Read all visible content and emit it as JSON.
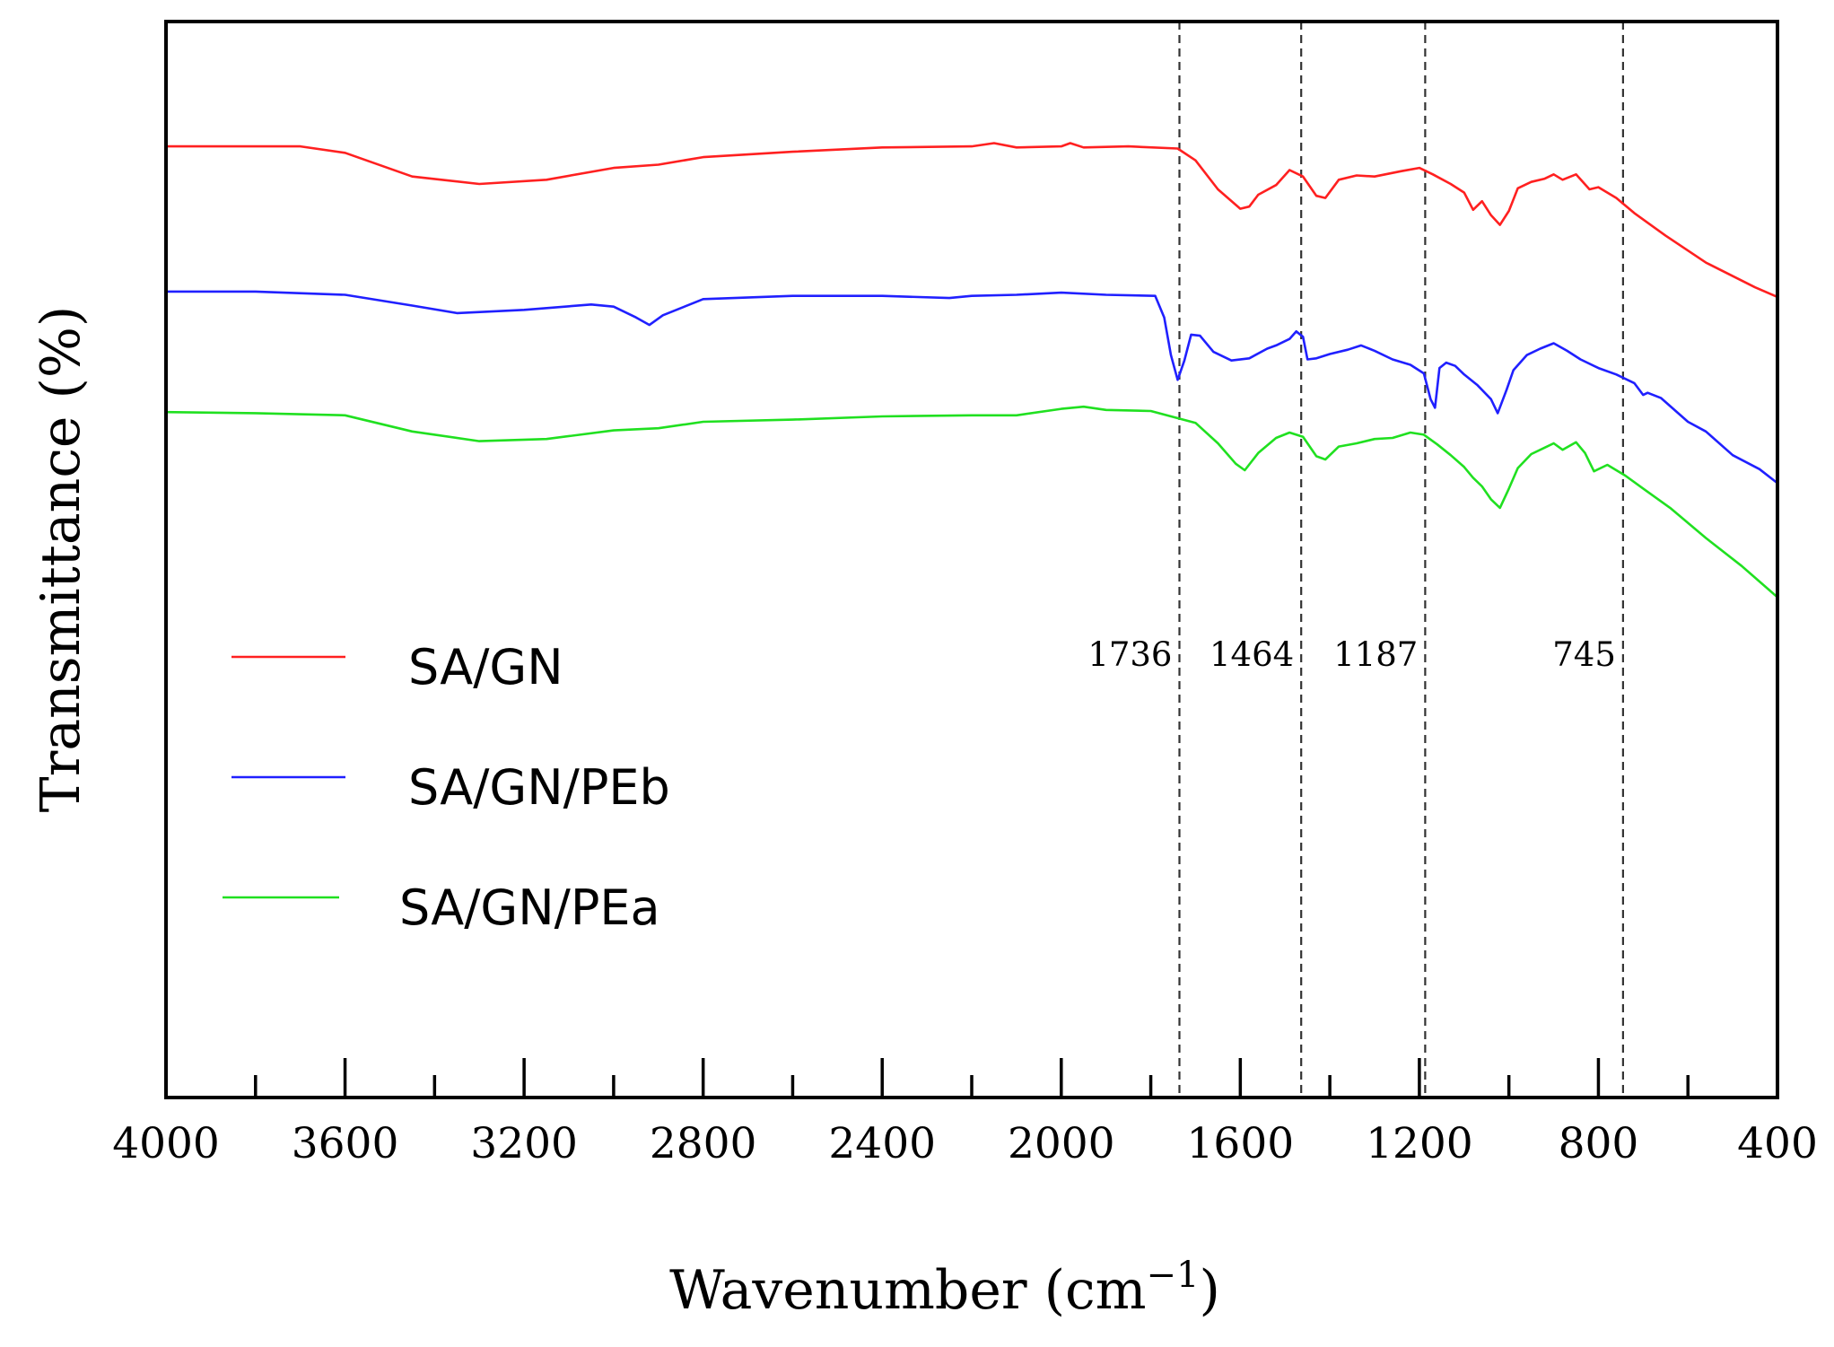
{
  "chart_data": {
    "type": "line",
    "title": "",
    "xlabel": "Wavenumber (cm",
    "xlabel_sup": "−1",
    "xlabel_close": ")",
    "ylabel": "Transmittance (%)",
    "xlim": [
      4000,
      400
    ],
    "ylim": [
      0,
      100
    ],
    "y_ticks_shown": false,
    "legend_position": "center-left",
    "x_ticks": [
      "4000",
      "3600",
      "3200",
      "2800",
      "2400",
      "2000",
      "1600",
      "1200",
      "800",
      "400"
    ],
    "annotations": [
      {
        "label": "1736",
        "x": 1736
      },
      {
        "label": "1464",
        "x": 1464
      },
      {
        "label": "1187",
        "x": 1187
      },
      {
        "label": "745",
        "x": 745
      }
    ],
    "series": [
      {
        "name": "SA/GN",
        "color": "#ff2020",
        "points": [
          [
            4000,
            88.4
          ],
          [
            3700,
            88.4
          ],
          [
            3600,
            87.8
          ],
          [
            3450,
            85.6
          ],
          [
            3300,
            84.9
          ],
          [
            3150,
            85.3
          ],
          [
            3000,
            86.4
          ],
          [
            2900,
            86.7
          ],
          [
            2800,
            87.4
          ],
          [
            2600,
            87.9
          ],
          [
            2400,
            88.3
          ],
          [
            2200,
            88.4
          ],
          [
            2150,
            88.7
          ],
          [
            2100,
            88.3
          ],
          [
            2000,
            88.4
          ],
          [
            1980,
            88.7
          ],
          [
            1950,
            88.3
          ],
          [
            1850,
            88.4
          ],
          [
            1740,
            88.2
          ],
          [
            1700,
            87.1
          ],
          [
            1650,
            84.4
          ],
          [
            1600,
            82.6
          ],
          [
            1580,
            82.8
          ],
          [
            1560,
            83.9
          ],
          [
            1520,
            84.8
          ],
          [
            1490,
            86.2
          ],
          [
            1460,
            85.6
          ],
          [
            1430,
            83.8
          ],
          [
            1410,
            83.6
          ],
          [
            1380,
            85.3
          ],
          [
            1340,
            85.7
          ],
          [
            1300,
            85.6
          ],
          [
            1240,
            86.1
          ],
          [
            1200,
            86.4
          ],
          [
            1170,
            85.8
          ],
          [
            1130,
            84.9
          ],
          [
            1100,
            84.1
          ],
          [
            1080,
            82.5
          ],
          [
            1060,
            83.3
          ],
          [
            1040,
            82.0
          ],
          [
            1020,
            81.1
          ],
          [
            1000,
            82.4
          ],
          [
            980,
            84.5
          ],
          [
            950,
            85.1
          ],
          [
            920,
            85.4
          ],
          [
            900,
            85.8
          ],
          [
            880,
            85.3
          ],
          [
            850,
            85.8
          ],
          [
            820,
            84.4
          ],
          [
            800,
            84.6
          ],
          [
            760,
            83.6
          ],
          [
            720,
            82.2
          ],
          [
            650,
            80.1
          ],
          [
            560,
            77.6
          ],
          [
            450,
            75.3
          ],
          [
            400,
            74.4
          ]
        ]
      },
      {
        "name": "SA/GN/PEb",
        "color": "#2020ff",
        "points": [
          [
            4000,
            74.9
          ],
          [
            3800,
            74.9
          ],
          [
            3600,
            74.6
          ],
          [
            3450,
            73.6
          ],
          [
            3350,
            72.9
          ],
          [
            3200,
            73.2
          ],
          [
            3050,
            73.7
          ],
          [
            3000,
            73.5
          ],
          [
            2950,
            72.5
          ],
          [
            2920,
            71.8
          ],
          [
            2890,
            72.7
          ],
          [
            2800,
            74.2
          ],
          [
            2600,
            74.5
          ],
          [
            2400,
            74.5
          ],
          [
            2250,
            74.3
          ],
          [
            2200,
            74.5
          ],
          [
            2100,
            74.6
          ],
          [
            2000,
            74.8
          ],
          [
            1900,
            74.6
          ],
          [
            1790,
            74.5
          ],
          [
            1770,
            72.5
          ],
          [
            1755,
            69.0
          ],
          [
            1740,
            66.7
          ],
          [
            1725,
            68.5
          ],
          [
            1710,
            70.9
          ],
          [
            1690,
            70.8
          ],
          [
            1660,
            69.3
          ],
          [
            1620,
            68.5
          ],
          [
            1580,
            68.7
          ],
          [
            1540,
            69.6
          ],
          [
            1520,
            69.9
          ],
          [
            1490,
            70.5
          ],
          [
            1475,
            71.2
          ],
          [
            1460,
            70.7
          ],
          [
            1450,
            68.6
          ],
          [
            1430,
            68.7
          ],
          [
            1400,
            69.1
          ],
          [
            1360,
            69.5
          ],
          [
            1330,
            69.9
          ],
          [
            1300,
            69.4
          ],
          [
            1260,
            68.6
          ],
          [
            1220,
            68.1
          ],
          [
            1190,
            67.3
          ],
          [
            1175,
            64.9
          ],
          [
            1165,
            64.1
          ],
          [
            1155,
            67.8
          ],
          [
            1140,
            68.3
          ],
          [
            1120,
            68.0
          ],
          [
            1100,
            67.2
          ],
          [
            1070,
            66.2
          ],
          [
            1040,
            64.9
          ],
          [
            1025,
            63.6
          ],
          [
            1005,
            65.8
          ],
          [
            990,
            67.6
          ],
          [
            960,
            69.0
          ],
          [
            930,
            69.6
          ],
          [
            900,
            70.1
          ],
          [
            870,
            69.4
          ],
          [
            840,
            68.6
          ],
          [
            800,
            67.8
          ],
          [
            760,
            67.2
          ],
          [
            720,
            66.4
          ],
          [
            700,
            65.3
          ],
          [
            690,
            65.5
          ],
          [
            660,
            65.0
          ],
          [
            600,
            62.8
          ],
          [
            560,
            61.9
          ],
          [
            500,
            59.7
          ],
          [
            440,
            58.4
          ],
          [
            400,
            57.1
          ]
        ]
      },
      {
        "name": "SA/GN/PEa",
        "color": "#20e020",
        "points": [
          [
            4000,
            63.7
          ],
          [
            3800,
            63.6
          ],
          [
            3600,
            63.4
          ],
          [
            3450,
            61.9
          ],
          [
            3300,
            61.0
          ],
          [
            3150,
            61.2
          ],
          [
            3000,
            62.0
          ],
          [
            2900,
            62.2
          ],
          [
            2800,
            62.8
          ],
          [
            2600,
            63.0
          ],
          [
            2400,
            63.3
          ],
          [
            2200,
            63.4
          ],
          [
            2100,
            63.4
          ],
          [
            2000,
            64.0
          ],
          [
            1950,
            64.2
          ],
          [
            1900,
            63.9
          ],
          [
            1800,
            63.8
          ],
          [
            1700,
            62.7
          ],
          [
            1650,
            60.8
          ],
          [
            1610,
            58.9
          ],
          [
            1590,
            58.3
          ],
          [
            1560,
            59.9
          ],
          [
            1520,
            61.3
          ],
          [
            1490,
            61.8
          ],
          [
            1460,
            61.4
          ],
          [
            1430,
            59.6
          ],
          [
            1410,
            59.3
          ],
          [
            1380,
            60.5
          ],
          [
            1340,
            60.8
          ],
          [
            1300,
            61.2
          ],
          [
            1260,
            61.3
          ],
          [
            1220,
            61.8
          ],
          [
            1190,
            61.6
          ],
          [
            1160,
            60.7
          ],
          [
            1130,
            59.7
          ],
          [
            1100,
            58.6
          ],
          [
            1080,
            57.6
          ],
          [
            1060,
            56.8
          ],
          [
            1040,
            55.6
          ],
          [
            1020,
            54.8
          ],
          [
            1000,
            56.6
          ],
          [
            980,
            58.5
          ],
          [
            950,
            59.8
          ],
          [
            920,
            60.4
          ],
          [
            900,
            60.8
          ],
          [
            880,
            60.2
          ],
          [
            850,
            60.9
          ],
          [
            830,
            59.9
          ],
          [
            810,
            58.2
          ],
          [
            780,
            58.8
          ],
          [
            740,
            57.8
          ],
          [
            700,
            56.6
          ],
          [
            640,
            54.8
          ],
          [
            560,
            52.0
          ],
          [
            480,
            49.4
          ],
          [
            400,
            46.5
          ]
        ]
      }
    ]
  }
}
